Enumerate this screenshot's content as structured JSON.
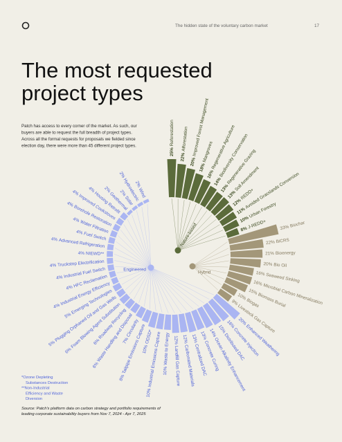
{
  "header": {
    "title": "The hidden state of the voluntary carbon market",
    "page": "17"
  },
  "title_lines": [
    "The most requested",
    "project types"
  ],
  "intro_lines": [
    "Patch has access to every corner of the market. As such, our",
    "buyers are able to request the full breadth of project types.",
    "Across all the formal requests for proposals we fielded since",
    "election day, there were more than 45 different project types."
  ],
  "footnotes": [
    "*Ozone Depleting",
    "Substances Destruction",
    "**Non-Industrial",
    "Efficiency and Waste",
    "Diversion"
  ],
  "source_lines": [
    "Source: Patch's platform data on carbon strategy and portfolio requirements of",
    "leading corporate sustainability buyers from Nov 7, 2024 - Apr 7, 2025"
  ],
  "chart_data": {
    "type": "radial_bar",
    "series": [
      {
        "name": "Nature-based",
        "color": "#5b6b3b",
        "label_color": "#3f4d24",
        "categories": [
          "Reforestation",
          "Afforestation",
          "Improved Forest Management",
          "Mangroves",
          "Regenerative Agriculture",
          "Biodiversity Conservation",
          "Regenerative Grazing",
          "Soil Amendment",
          "REDD+",
          "Avoided Grasslands Conversion",
          "Urban Forestry",
          "J-REDD+"
        ],
        "values": [
          25,
          22,
          20,
          18,
          16,
          14,
          13,
          13,
          12,
          11,
          10,
          8
        ],
        "value_labels": [
          "25%",
          "22%",
          "20%",
          "18%",
          "16%",
          "14%",
          "13%",
          "13%",
          "12%",
          "11%",
          "10%",
          "8%"
        ]
      },
      {
        "name": "Hybrid",
        "color": "#a39779",
        "label_color": "#857a5f",
        "categories": [
          "Biochar",
          "BiCRS",
          "Bioenergy",
          "Bio Oil",
          "Seaweed Sinking",
          "Microbial Carbon Mineralization",
          "Biomass Burial",
          "Biogas",
          "Livestock Gas Capture"
        ],
        "values": [
          33,
          22,
          21,
          20,
          16,
          16,
          15,
          10,
          9
        ],
        "value_labels": [
          "33%",
          "22%",
          "21%",
          "20%",
          "16%",
          "16%",
          "15%",
          "10%",
          "9%"
        ]
      },
      {
        "name": "Engineered",
        "color": "#aab5f2",
        "label_color": "#4f63d9",
        "categories": [
          "Enhanced Weathering",
          "Concrete Injection",
          "Distributed DAC",
          "Ocean Alkalinity Enhancement",
          "Concrete Curing",
          "Centralized DAC",
          "Carbonated Materials",
          "Landfill Gas Capture",
          "Waste to Energy",
          "Industrial Emissions Capture",
          "ODSD*",
          "Tailpipe Emissions Capture",
          "Circularity",
          "Waste Handling and Disposal",
          "Roadway Recycling",
          "Foam Blowing Agent Substitution",
          "Plugging Orphaned Oil and Gas Wells",
          "Emerging Technologies",
          "Industrial Energy Efficiency",
          "HFC Reclamation",
          "Industrial Fuel Switch",
          "Truckstop Electrification",
          "NIEWD**",
          "Advanced Refrigeration",
          "Fuel Switch",
          "Water Filtration",
          "Borehole Restoration",
          "Improved Cookstoves",
          "Housing Retrofit",
          "Geothermal",
          "Solar",
          "Hydroelectric",
          "Wind"
        ],
        "values": [
          20,
          16,
          15,
          14,
          13,
          13,
          12,
          12,
          10,
          10,
          10,
          8,
          7,
          6,
          6,
          6,
          5,
          5,
          4,
          4,
          4,
          4,
          4,
          4,
          4,
          4,
          4,
          4,
          4,
          2,
          2,
          2,
          2
        ],
        "value_labels": [
          "20%",
          "16%",
          "15%",
          "14%",
          "13%",
          "13%",
          "12%",
          "12%",
          "10%",
          "10%",
          "10%",
          "8%",
          "7%",
          "6%",
          "6%",
          "6%",
          "5%",
          "5%",
          "4%",
          "4%",
          "4%",
          "4%",
          "4%",
          "4%",
          "4%",
          "4%",
          "4%",
          "4%",
          "4%",
          "2%",
          "2%",
          "2%",
          "2%"
        ]
      }
    ]
  }
}
